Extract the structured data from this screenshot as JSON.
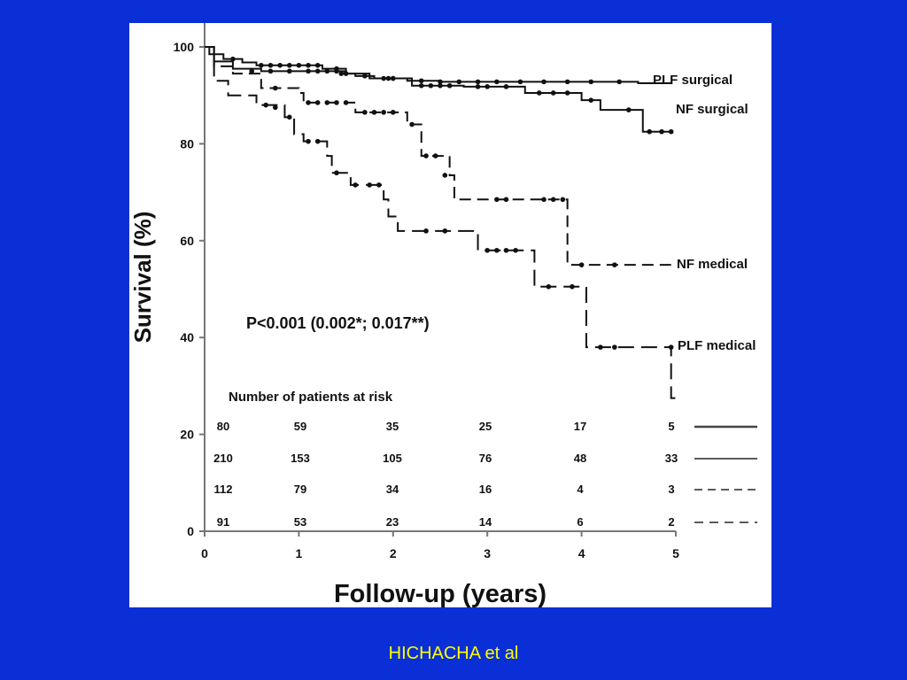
{
  "slide": {
    "background": "#0a2fd6",
    "caption": "HICHACHA et al",
    "caption_color": "#ffff00"
  },
  "chart_data": {
    "type": "line",
    "subtype": "kaplan-meier",
    "title": "",
    "xlabel": "Follow-up (years)",
    "ylabel": "Survival (%)",
    "xlim": [
      0,
      5
    ],
    "ylim": [
      0,
      100
    ],
    "xticks": [
      0,
      1,
      2,
      3,
      4,
      5
    ],
    "yticks": [
      0,
      20,
      40,
      60,
      80,
      100
    ],
    "grid": false,
    "annotation": "P<0.001 (0.002*; 0.017**)",
    "risk_table": {
      "title": "Number of patients at risk",
      "times": [
        0,
        1,
        2,
        3,
        4,
        5
      ],
      "rows": [
        {
          "values": [
            "80",
            "59",
            "35",
            "25",
            "17",
            "5"
          ],
          "line_style": "solid-thick"
        },
        {
          "values": [
            "210",
            "153",
            "105",
            "76",
            "48",
            "33"
          ],
          "line_style": "solid"
        },
        {
          "values": [
            "112",
            "79",
            "34",
            "16",
            "4",
            "3"
          ],
          "line_style": "dashed"
        },
        {
          "values": [
            "91",
            "53",
            "23",
            "14",
            "6",
            "2"
          ],
          "line_style": "dashed-long"
        }
      ]
    },
    "series": [
      {
        "name": "PLF surgical",
        "dash": "solid",
        "steps": [
          [
            0,
            100
          ],
          [
            0.05,
            98.5
          ],
          [
            0.2,
            97.5
          ],
          [
            0.4,
            96.8
          ],
          [
            0.55,
            96.2
          ],
          [
            1.25,
            95.5
          ],
          [
            1.5,
            94.5
          ],
          [
            1.6,
            94
          ],
          [
            1.8,
            93.5
          ],
          [
            2.15,
            93
          ],
          [
            2.5,
            92.8
          ],
          [
            4.6,
            92.5
          ],
          [
            4.95,
            92.5
          ]
        ],
        "censor": [
          [
            0.3,
            97.5
          ],
          [
            0.6,
            96.2
          ],
          [
            0.7,
            96.2
          ],
          [
            0.8,
            96.2
          ],
          [
            0.9,
            96.2
          ],
          [
            1.0,
            96.2
          ],
          [
            1.1,
            96.2
          ],
          [
            1.2,
            96.2
          ],
          [
            1.4,
            95.5
          ],
          [
            1.7,
            94
          ],
          [
            1.9,
            93.5
          ],
          [
            2.0,
            93.5
          ],
          [
            2.3,
            93
          ],
          [
            2.5,
            92.8
          ],
          [
            2.7,
            92.8
          ],
          [
            2.9,
            92.8
          ],
          [
            3.1,
            92.8
          ],
          [
            3.35,
            92.8
          ],
          [
            3.6,
            92.8
          ],
          [
            3.85,
            92.8
          ],
          [
            4.1,
            92.8
          ],
          [
            4.4,
            92.8
          ]
        ]
      },
      {
        "name": "NF surgical",
        "dash": "solid",
        "steps": [
          [
            0,
            100
          ],
          [
            0.1,
            97
          ],
          [
            0.3,
            95.5
          ],
          [
            0.6,
            95
          ],
          [
            1.5,
            94.5
          ],
          [
            1.75,
            93.5
          ],
          [
            2.2,
            92
          ],
          [
            2.75,
            91.8
          ],
          [
            3.4,
            90.5
          ],
          [
            4.0,
            89
          ],
          [
            4.2,
            87
          ],
          [
            4.65,
            82.5
          ],
          [
            4.95,
            82.5
          ]
        ],
        "censor": [
          [
            0.5,
            95
          ],
          [
            0.7,
            95
          ],
          [
            0.9,
            95
          ],
          [
            1.1,
            95
          ],
          [
            1.2,
            95
          ],
          [
            1.3,
            95
          ],
          [
            1.4,
            95
          ],
          [
            1.45,
            94.5
          ],
          [
            1.5,
            94.5
          ],
          [
            1.95,
            93.5
          ],
          [
            2.0,
            93.5
          ],
          [
            2.3,
            92
          ],
          [
            2.4,
            92
          ],
          [
            2.5,
            92
          ],
          [
            2.6,
            92
          ],
          [
            2.9,
            91.8
          ],
          [
            3.0,
            91.8
          ],
          [
            3.2,
            91.8
          ],
          [
            3.55,
            90.5
          ],
          [
            3.7,
            90.5
          ],
          [
            3.85,
            90.5
          ],
          [
            4.1,
            89
          ],
          [
            4.5,
            87
          ],
          [
            4.72,
            82.5
          ],
          [
            4.85,
            82.5
          ],
          [
            4.95,
            82.5
          ]
        ]
      },
      {
        "name": "NF medical",
        "dash": "dashed",
        "steps": [
          [
            0,
            100
          ],
          [
            0.1,
            96
          ],
          [
            0.3,
            94.5
          ],
          [
            0.6,
            91.5
          ],
          [
            1.0,
            90.5
          ],
          [
            1.05,
            88.5
          ],
          [
            1.6,
            86.5
          ],
          [
            2.15,
            84
          ],
          [
            2.3,
            77.5
          ],
          [
            2.6,
            73.5
          ],
          [
            2.65,
            68.5
          ],
          [
            3.85,
            55
          ],
          [
            4.95,
            55
          ]
        ],
        "censor": [
          [
            0.75,
            91.5
          ],
          [
            1.1,
            88.5
          ],
          [
            1.2,
            88.5
          ],
          [
            1.3,
            88.5
          ],
          [
            1.4,
            88.5
          ],
          [
            1.5,
            88.5
          ],
          [
            1.7,
            86.5
          ],
          [
            1.8,
            86.5
          ],
          [
            1.9,
            86.5
          ],
          [
            2.0,
            86.5
          ],
          [
            2.2,
            84
          ],
          [
            2.35,
            77.5
          ],
          [
            2.45,
            77.5
          ],
          [
            2.55,
            73.5
          ],
          [
            3.1,
            68.5
          ],
          [
            3.2,
            68.5
          ],
          [
            3.6,
            68.5
          ],
          [
            3.7,
            68.5
          ],
          [
            3.8,
            68.5
          ],
          [
            4.0,
            55
          ],
          [
            4.35,
            55
          ]
        ]
      },
      {
        "name": "PLF medical",
        "dash": "long-dashed",
        "steps": [
          [
            0,
            100
          ],
          [
            0.1,
            93
          ],
          [
            0.25,
            90
          ],
          [
            0.55,
            88
          ],
          [
            0.85,
            85.5
          ],
          [
            0.95,
            82
          ],
          [
            1.05,
            80.5
          ],
          [
            1.3,
            77.5
          ],
          [
            1.35,
            74
          ],
          [
            1.55,
            71.5
          ],
          [
            1.9,
            68.5
          ],
          [
            1.95,
            65
          ],
          [
            2.05,
            62
          ],
          [
            2.9,
            58
          ],
          [
            3.5,
            50.5
          ],
          [
            4.05,
            38
          ],
          [
            4.95,
            38
          ]
        ],
        "censor": [
          [
            0.65,
            88
          ],
          [
            0.75,
            87.5
          ],
          [
            0.9,
            85.5
          ],
          [
            1.1,
            80.5
          ],
          [
            1.2,
            80.5
          ],
          [
            1.4,
            74
          ],
          [
            1.6,
            71.5
          ],
          [
            1.75,
            71.5
          ],
          [
            1.85,
            71.5
          ],
          [
            2.35,
            62
          ],
          [
            2.55,
            62
          ],
          [
            3.0,
            58
          ],
          [
            3.1,
            58
          ],
          [
            3.2,
            58
          ],
          [
            3.3,
            58
          ],
          [
            3.65,
            50.5
          ],
          [
            3.9,
            50.5
          ],
          [
            4.2,
            38
          ],
          [
            4.35,
            38
          ],
          [
            4.95,
            38
          ]
        ],
        "final_drop": 27.5
      }
    ]
  }
}
